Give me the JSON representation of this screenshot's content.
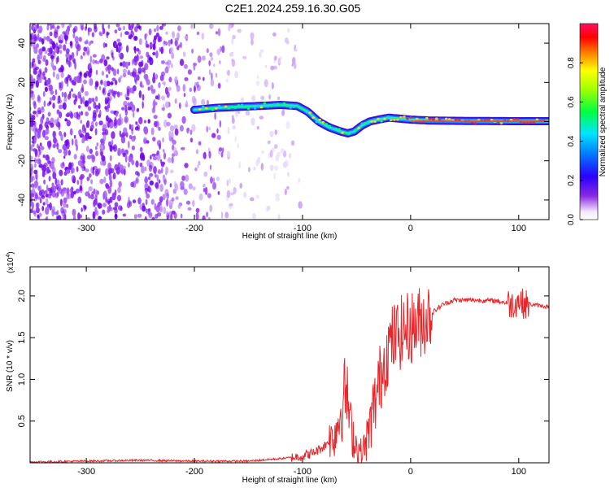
{
  "title": "C2E1.2024.259.16.30.G05",
  "colors": {
    "snr_line": "#e8262a",
    "centerline": "#ff3b1f",
    "scatter": [
      "#6a00e8",
      "#8a22f0",
      "#a45cf2",
      "#c9a2f6",
      "#e6d7fb"
    ]
  },
  "chart_data": [
    {
      "type": "heatmap",
      "xlabel": "Height of straight line (km)",
      "ylabel": "Frequency (Hz)",
      "xlim": [
        -352,
        128
      ],
      "ylim": [
        -50,
        50
      ],
      "xticks": [
        -300,
        -200,
        -100,
        0,
        100
      ],
      "yticks": [
        40,
        20,
        0,
        -20,
        -40
      ],
      "ytick_labels": [
        "40",
        "20",
        "0",
        "-20",
        "-40"
      ],
      "colorbar": {
        "label": "Normalized spectral amplitude",
        "range": [
          0,
          1
        ],
        "ticks": [
          0.0,
          0.2,
          0.4,
          0.6,
          0.8
        ],
        "tick_labels": [
          "0.0",
          "0.2",
          "0.4",
          "0.6",
          "0.8"
        ]
      },
      "ridge": {
        "x": [
          -200,
          -180,
          -160,
          -140,
          -120,
          -105,
          -95,
          -85,
          -75,
          -65,
          -58,
          -52,
          -45,
          -38,
          -30,
          -20,
          -10,
          0,
          20,
          60,
          100,
          128
        ],
        "y": [
          6,
          7,
          7.5,
          8,
          8.5,
          8,
          5,
          0,
          -3,
          -5,
          -6,
          -5,
          -2,
          0,
          1,
          2,
          1.5,
          1,
          0.5,
          0.3,
          0.2,
          0.2
        ]
      }
    },
    {
      "type": "line",
      "xlabel": "Height of straight line (km)",
      "ylabel": "SNR (10 * v/v)",
      "y_multiplier": "(x10",
      "y_multiplier_exp": "4",
      "xlim": [
        -352,
        128
      ],
      "ylim": [
        0,
        2.35
      ],
      "xticks": [
        -300,
        -200,
        -100,
        0,
        100
      ],
      "yticks": [
        0.5,
        1.0,
        1.5,
        2.0
      ],
      "ytick_labels": [
        "0.5",
        "1.0",
        "1.5",
        "2.0"
      ],
      "series": [
        {
          "x": [
            -352,
            -300,
            -250,
            -200,
            -150,
            -120,
            -100,
            -90,
            -80,
            -70,
            -65,
            -60,
            -55,
            -50,
            -45,
            -40,
            -35,
            -30,
            -25,
            -20,
            -15,
            -10,
            -5,
            0,
            10,
            20,
            30,
            40,
            60,
            80,
            95,
            100,
            105,
            110,
            128
          ],
          "y": [
            0.01,
            0.02,
            0.03,
            0.02,
            0.02,
            0.05,
            0.08,
            0.12,
            0.2,
            0.35,
            0.6,
            0.9,
            0.4,
            0.2,
            0.1,
            0.3,
            0.6,
            0.9,
            1.2,
            1.4,
            1.5,
            1.55,
            1.6,
            1.62,
            1.7,
            1.8,
            1.9,
            1.95,
            1.95,
            1.94,
            1.9,
            1.95,
            1.9,
            1.9,
            1.87
          ]
        }
      ]
    }
  ]
}
